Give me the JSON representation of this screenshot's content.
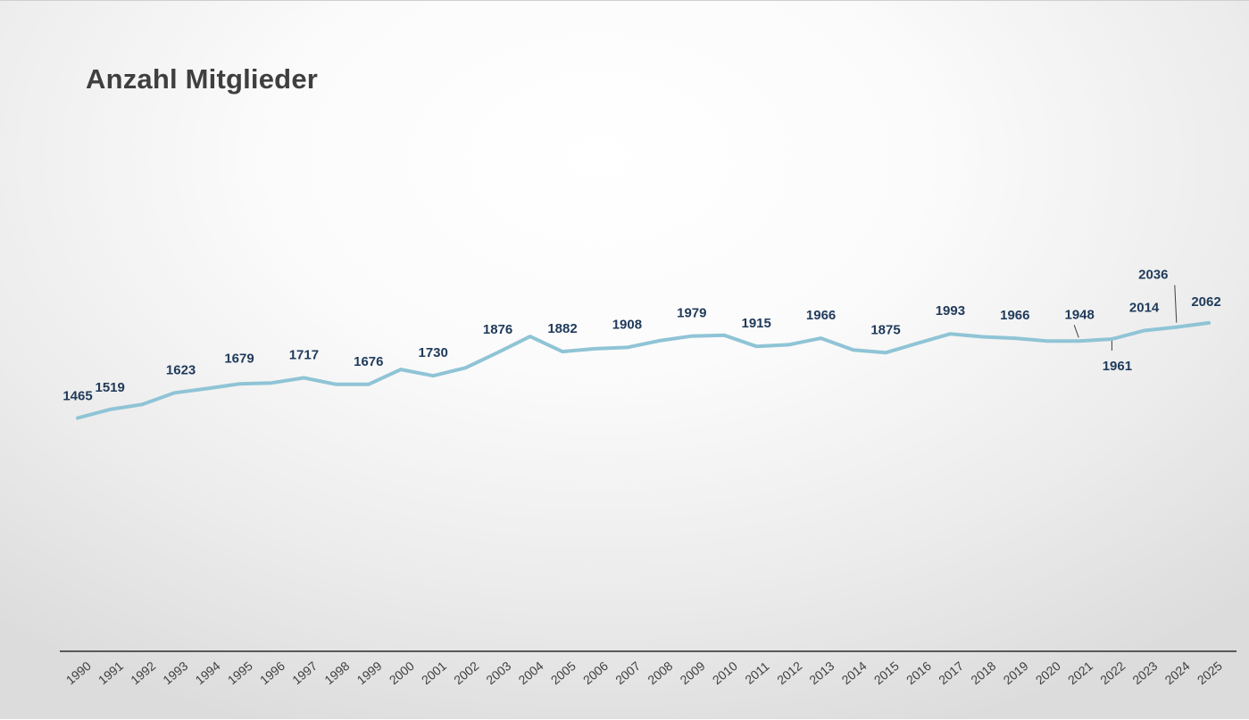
{
  "chart_data": {
    "type": "line",
    "title": "Anzahl Mitglieder",
    "xlabel": "",
    "ylabel": "",
    "x": [
      "1990",
      "1991",
      "1992",
      "1993",
      "1994",
      "1995",
      "1996",
      "1997",
      "1998",
      "1999",
      "2000",
      "2001",
      "2002",
      "2003",
      "2004",
      "2005",
      "2006",
      "2007",
      "2008",
      "2009",
      "2010",
      "2011",
      "2012",
      "2013",
      "2014",
      "2015",
      "2016",
      "2017",
      "2018",
      "2019",
      "2020",
      "2021",
      "2022",
      "2023",
      "2024",
      "2025"
    ],
    "values": [
      1465,
      1519,
      1550,
      1623,
      1650,
      1679,
      1685,
      1717,
      1676,
      1676,
      1770,
      1730,
      1780,
      1876,
      1977,
      1882,
      1900,
      1908,
      1950,
      1979,
      1985,
      1915,
      1925,
      1966,
      1892,
      1875,
      1935,
      1993,
      1975,
      1966,
      1948,
      1948,
      1961,
      2014,
      2036,
      2062
    ],
    "labels": {
      "0": "1465",
      "1": "1519",
      "3": "1623",
      "5": "1679",
      "7": "1717",
      "9": "1676",
      "11": "1730",
      "13": "1876",
      "15": "1882",
      "17": "1908",
      "19": "1979",
      "21": "1915",
      "23": "1966",
      "25": "1875",
      "27": "1993",
      "29": "1966",
      "31": "1948",
      "32": "1961",
      "33": "2014",
      "34": "2036",
      "35": "2062"
    },
    "ylim": [
      0,
      2400
    ],
    "grid": false,
    "legend": "none",
    "line_color": "#8fc4d6",
    "label_color": "#1f3a5a",
    "axis_color": "#595959"
  }
}
